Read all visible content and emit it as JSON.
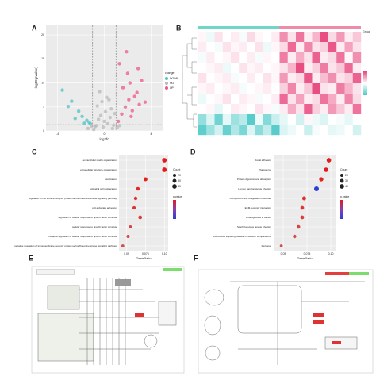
{
  "chart_data": [
    {
      "label": "A",
      "type": "scatter",
      "xlabel": "log2fc",
      "ylabel": "-log10(pvalue)",
      "xlim": [
        -5,
        5
      ],
      "ylim": [
        0,
        22
      ],
      "xticks": [
        -4,
        0,
        4
      ],
      "yticks": [
        0,
        5,
        10,
        15,
        20
      ],
      "grid": true,
      "vlines": [
        -1,
        1
      ],
      "hlines": [
        1.3
      ],
      "legend_title": "change",
      "series": [
        {
          "name": "DOWN",
          "color": "#4fc3c3",
          "x": [
            -3.6,
            -2.8,
            -2.2,
            -1.9,
            -1.5,
            -1.3,
            -3.1,
            -2.5,
            -1.7,
            -1.2
          ],
          "values": [
            8.5,
            6.2,
            4.1,
            3.0,
            2.2,
            1.8,
            5.1,
            2.6,
            1.6,
            1.5
          ]
        },
        {
          "name": "NOT",
          "color": "#b9b9b9",
          "x": [
            -0.9,
            -0.7,
            -0.5,
            -0.3,
            -0.1,
            0.1,
            0.3,
            0.5,
            0.7,
            0.9,
            -0.6,
            -0.2,
            0.2,
            0.6,
            -0.8,
            0.4,
            0,
            -0.4,
            0.8,
            -1.1,
            1.1,
            -1.4,
            1.3
          ],
          "values": [
            0.3,
            1.1,
            2.4,
            3.2,
            0.8,
            4.0,
            1.5,
            2.8,
            0.5,
            3.6,
            5.2,
            6.1,
            7.0,
            4.6,
            0.9,
            6.5,
            2.0,
            8.2,
            1.2,
            1.0,
            0.7,
            0.5,
            1.1
          ]
        },
        {
          "name": "UP",
          "color": "#ef5a86",
          "x": [
            1.2,
            1.5,
            1.8,
            2.1,
            2.4,
            2.8,
            3.2,
            1.6,
            2.0,
            2.6,
            3.0,
            1.3,
            1.9,
            2.3,
            3.5,
            2.2,
            2.9
          ],
          "values": [
            2.0,
            3.5,
            5.0,
            6.5,
            4.2,
            8.0,
            10.5,
            9.0,
            12.0,
            7.2,
            5.5,
            14.0,
            16.5,
            3.0,
            6.0,
            10.0,
            13.0
          ]
        }
      ]
    },
    {
      "label": "B",
      "type": "heatmap",
      "legend_title": "Group",
      "zlim": [
        -2,
        2
      ],
      "colors": [
        "#4fc8c8",
        "#ffffff",
        "#e8457c"
      ],
      "matrix": [
        [
          0.1,
          -0.2,
          0.3,
          0,
          0.2,
          -0.1,
          0.4,
          0.1,
          0,
          0.2,
          1.2,
          0.3,
          1.5,
          0.2,
          0.8,
          1.9,
          0.4,
          1.1,
          0.2,
          0.6
        ],
        [
          0.2,
          0,
          -0.1,
          0.3,
          0.1,
          0.2,
          0,
          0.3,
          -0.2,
          0.1,
          0.4,
          1.6,
          0.2,
          1.3,
          0.3,
          0.5,
          1.8,
          0.2,
          1,
          0.3
        ],
        [
          -0.1,
          0.2,
          0,
          0.1,
          0.3,
          0,
          0.2,
          -0.1,
          0.1,
          0,
          1.4,
          0.2,
          0.9,
          0.3,
          1.7,
          0.2,
          0.4,
          1.5,
          0.1,
          1.2
        ],
        [
          0,
          0.1,
          0.2,
          -0.2,
          0,
          0.3,
          0.1,
          0.2,
          0,
          0.1,
          0.3,
          0.8,
          1.9,
          0.2,
          0.5,
          1.4,
          0.3,
          0.6,
          1.6,
          0.2
        ],
        [
          0.3,
          0,
          0.1,
          0.2,
          -0.1,
          0,
          0.2,
          0,
          0.3,
          0.1,
          1.1,
          0.2,
          0.4,
          1.8,
          0.2,
          0.7,
          1.2,
          0.3,
          0.5,
          1.7
        ],
        [
          0.1,
          0.2,
          0,
          0.1,
          0.2,
          -0.1,
          0,
          0.1,
          0.2,
          0,
          0.5,
          1.3,
          0.2,
          0.6,
          1.9,
          0.3,
          0.2,
          1.4,
          0.8,
          0.3
        ],
        [
          -0.2,
          0,
          0.1,
          0.3,
          0,
          0.2,
          0.1,
          -0.1,
          0,
          0.2,
          1.6,
          0.3,
          1,
          0.2,
          0.4,
          1.5,
          0.9,
          0.2,
          1.3,
          0.4
        ],
        [
          0,
          0.1,
          -0.3,
          0,
          0.2,
          0.1,
          0,
          0.3,
          0.1,
          -0.1,
          0.2,
          0.9,
          0.3,
          1.7,
          0.5,
          0.2,
          1.1,
          0.6,
          0.2,
          1.5
        ],
        [
          -1.2,
          -0.4,
          -1.6,
          -0.3,
          -1.1,
          -0.8,
          -1.9,
          -0.2,
          -1.4,
          -0.6,
          -0.3,
          0,
          -0.5,
          0.1,
          -0.2,
          -0.4,
          0,
          -0.1,
          -0.3,
          0
        ],
        [
          -1.8,
          -1.1,
          -0.5,
          -1.7,
          -0.9,
          -1.5,
          -0.4,
          -1.3,
          -0.7,
          -1.9,
          -0.4,
          -0.2,
          0,
          -0.6,
          -0.1,
          0,
          -0.3,
          -0.2,
          0,
          -0.5
        ]
      ]
    },
    {
      "label": "C",
      "type": "dot",
      "xlabel": "GeneRatio",
      "xlim": [
        0.04,
        0.105
      ],
      "xticks": [
        {
          "value": 0.05,
          "label": "0.05"
        },
        {
          "value": 0.075,
          "label": "0.075"
        },
        {
          "value": 0.1,
          "label": "0.10"
        }
      ],
      "categories": [
        "extracellular matrix organization",
        "extracellular structure organization",
        "ossification",
        "epithelial cell proliferation",
        "regulation of cell surface receptor protein serine/threonine kinase signaling pathway",
        "cell-substrate adhesion",
        "regulation of cellular response to growth factor stimulus",
        "cellular response to growth factor stimulus",
        "negative regulation of cellular response to growth factor stimulus",
        "negative regulation of transmembrane receptor protein serine/threonine kinase signaling pathway"
      ],
      "values": [
        0.1,
        0.1,
        0.075,
        0.065,
        0.062,
        0.06,
        0.068,
        0.055,
        0.052,
        0.045
      ],
      "sizes": [
        40,
        40,
        30,
        26,
        24,
        23,
        28,
        21,
        20,
        18
      ],
      "colors": [
        "#e41a1c",
        "#e41a1c",
        "#e3221f",
        "#e22a26",
        "#e0302c",
        "#de3632",
        "#dc3c38",
        "#d8443e",
        "#d44a46",
        "#cf504e"
      ],
      "size_title": "Count",
      "size_legend": [
        20,
        30,
        40
      ],
      "color_title": "p.value"
    },
    {
      "label": "D",
      "type": "dot",
      "xlabel": "GeneRatio",
      "xlim": [
        0.04,
        0.105
      ],
      "xticks": [
        {
          "value": 0.05,
          "label": "0.05"
        },
        {
          "value": 0.075,
          "label": "0.075"
        },
        {
          "value": 0.1,
          "label": "0.10"
        }
      ],
      "categories": [
        "Focal adhesion",
        "Phagosome",
        "Protein digestion and absorption",
        "Human papillomavirus infection",
        "Complement and coagulation cascades",
        "ECM-receptor interaction",
        "Proteoglycans in cancer",
        "Staphylococcus aureus infection",
        "AGE-RAGE signaling pathway in diabetic complications",
        "Pertussis"
      ],
      "values": [
        0.098,
        0.095,
        0.09,
        0.085,
        0.072,
        0.07,
        0.07,
        0.066,
        0.062,
        0.048
      ],
      "sizes": [
        40,
        38,
        35,
        45,
        30,
        28,
        28,
        26,
        24,
        18
      ],
      "colors": [
        "#e41a1c",
        "#e41a1c",
        "#e3221f",
        "#2b3fd6",
        "#e0302c",
        "#de3632",
        "#dc3c38",
        "#d8443e",
        "#d44a46",
        "#cf504e"
      ],
      "size_title": "Count",
      "size_legend": [
        20,
        30,
        40
      ],
      "color_title": "p.value"
    }
  ],
  "diagrams": [
    {
      "label": "E"
    },
    {
      "label": "F"
    }
  ]
}
